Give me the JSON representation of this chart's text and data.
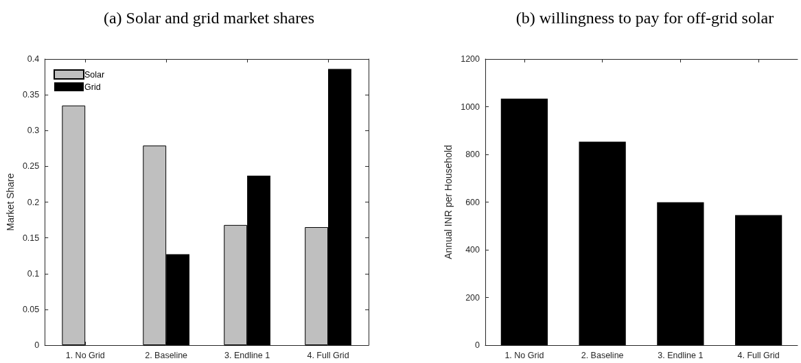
{
  "chart_data": [
    {
      "type": "bar",
      "title": "(a) Solar and grid market shares",
      "ylabel": "Market Share",
      "categories": [
        "1. No Grid",
        "2. Baseline",
        "3. Endline 1",
        "4. Full Grid"
      ],
      "series": [
        {
          "name": "Solar",
          "color": "#bfbfbf",
          "values": [
            0.335,
            0.279,
            0.168,
            0.165
          ]
        },
        {
          "name": "Grid",
          "color": "#000000",
          "values": [
            0,
            0.127,
            0.237,
            0.386
          ]
        }
      ],
      "ylim": [
        0,
        0.4
      ],
      "yticks": [
        0,
        0.05,
        0.1,
        0.15,
        0.2,
        0.25,
        0.3,
        0.35,
        0.4
      ],
      "legend": "top left"
    },
    {
      "type": "bar",
      "title": "(b) willingness to pay for off-grid solar",
      "ylabel": "Annual INR per Household",
      "categories": [
        "1. No Grid",
        "2. Baseline",
        "3. Endline 1",
        "4. Full Grid"
      ],
      "values": [
        1034,
        853,
        599,
        545
      ],
      "color": "#000000",
      "ylim": [
        0,
        1200
      ],
      "yticks": [
        0,
        200,
        400,
        600,
        800,
        1000,
        1200
      ]
    }
  ]
}
